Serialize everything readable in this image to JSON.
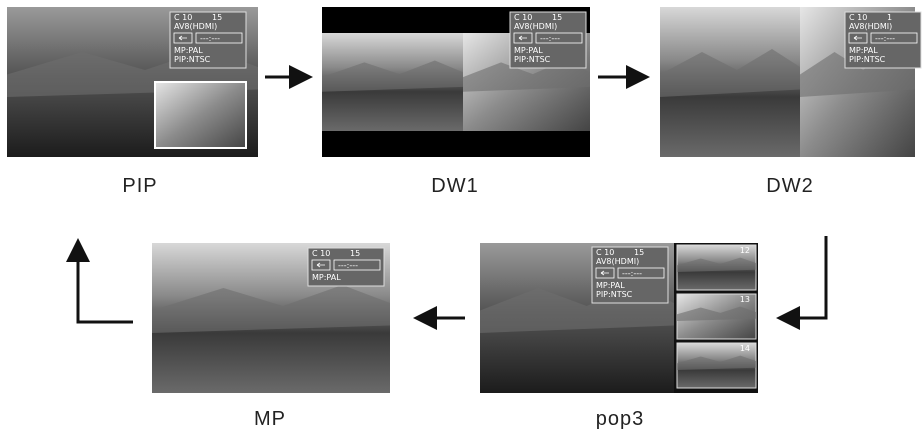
{
  "nodes": [
    {
      "label": "PIP",
      "osd": {
        "channel": "C 10",
        "number": "15",
        "source": "AV8(HDMI)",
        "time": "---:---",
        "main": "MP:PAL",
        "sub": "PIP:NTSC"
      }
    },
    {
      "label": "DW1",
      "osd": {
        "channel": "C 10",
        "number": "15",
        "source": "AV8(HDMI)",
        "time": "---:---",
        "main": "MP:PAL",
        "sub": "PIP:NTSC"
      }
    },
    {
      "label": "DW2",
      "osd": {
        "channel": "C 10",
        "number": "1",
        "source": "AV8(HDMI)",
        "time": "---:---",
        "main": "MP:PAL",
        "sub": "PIP:NTSC"
      }
    },
    {
      "label": "pop3",
      "osd": {
        "channel": "C 10",
        "number": "15",
        "source": "AV8(HDMI)",
        "time": "---:---",
        "main": "MP:PAL",
        "sub": "PIP:NTSC"
      },
      "windows": [
        "12",
        "13",
        "14"
      ]
    },
    {
      "label": "MP",
      "osd": {
        "channel": "C 10",
        "number": "15",
        "time": "---:---",
        "main": "MP:PAL"
      }
    }
  ]
}
